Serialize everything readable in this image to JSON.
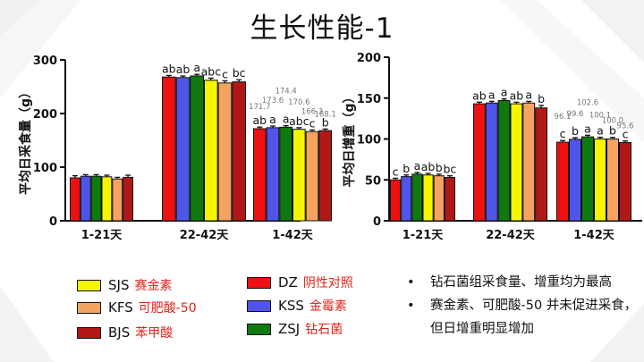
{
  "title": "生长性能-1",
  "legend": [
    {
      "code": "SJS",
      "name": "赛金素",
      "color": "#f5f500"
    },
    {
      "code": "KFS",
      "name": "可肥酸-50",
      "color": "#f4a460"
    },
    {
      "code": "BJS",
      "name": "苯甲酸",
      "color": "#b01818"
    },
    {
      "code": "DZ",
      "name": "阴性对照",
      "color": "#ee1111"
    },
    {
      "code": "KSS",
      "name": "金霉素",
      "color": "#4f55e8"
    },
    {
      "code": "ZSJ",
      "name": "钻石菌",
      "color": "#0e7a0e"
    }
  ],
  "bullets": [
    "钻石菌组采食量、增重均为最高",
    "赛金素、可肥酸-50 并未促进采食，",
    "但日增重明显增加"
  ],
  "chart_data": [
    {
      "type": "bar",
      "ylabel": "平均日采食量（g）",
      "ylim": [
        0,
        300
      ],
      "yticks": [
        "0",
        "100",
        "200",
        "300"
      ],
      "categories": [
        "1-21天",
        "22-42天",
        "1-42天"
      ],
      "series_order": [
        "DZ",
        "KSS",
        "ZSJ",
        "SJS",
        "KFS",
        "BJS"
      ],
      "values": [
        [
          80,
          83,
          83,
          82,
          78,
          81
        ],
        [
          268,
          267,
          270,
          262,
          257,
          259
        ],
        [
          171.7,
          173.6,
          174.4,
          170.6,
          166.3,
          168.1
        ]
      ],
      "errors": [
        [
          4,
          3,
          3,
          3,
          3,
          4
        ],
        [
          3,
          3,
          3,
          4,
          4,
          4
        ],
        [
          3,
          3,
          3,
          3,
          3,
          3
        ]
      ],
      "letters": [
        [
          "",
          "",
          "",
          "",
          "",
          ""
        ],
        [
          "ab",
          "ab",
          "a",
          "abc",
          "c",
          "bc"
        ],
        [
          "ab",
          "a",
          "a",
          "abc",
          "c",
          "b"
        ]
      ],
      "value_labels": [
        [
          "",
          "",
          "",
          "",
          "",
          ""
        ],
        [
          "",
          "",
          "",
          "",
          "",
          ""
        ],
        [
          "171.7",
          "173.6",
          "174.4",
          "170.6",
          "166.3",
          "168.1"
        ]
      ]
    },
    {
      "type": "bar",
      "ylabel": "平均日增重（g）",
      "ylim": [
        0,
        200
      ],
      "yticks": [
        "0",
        "50",
        "100",
        "150",
        "200"
      ],
      "categories": [
        "1-21天",
        "22-42天",
        "1-42天"
      ],
      "series_order": [
        "DZ",
        "KSS",
        "ZSJ",
        "SJS",
        "KFS",
        "BJS"
      ],
      "values": [
        [
          50,
          54,
          57,
          56,
          55,
          53
        ],
        [
          143,
          144,
          147,
          143,
          144,
          138
        ],
        [
          96.1,
          99.6,
          102.6,
          100.1,
          100.0,
          95.6
        ]
      ],
      "errors": [
        [
          2,
          2,
          2,
          2,
          2,
          2
        ],
        [
          2,
          2,
          2,
          2,
          2,
          3
        ],
        [
          2,
          2,
          2,
          2,
          2,
          2
        ]
      ],
      "letters": [
        [
          "c",
          "b",
          "a",
          "ab",
          "b",
          "bc"
        ],
        [
          "ab",
          "a",
          "a",
          "ab",
          "a",
          "b"
        ],
        [
          "c",
          "b",
          "a",
          "a",
          "b",
          "c"
        ]
      ],
      "value_labels": [
        [
          "",
          "",
          "",
          "",
          "",
          ""
        ],
        [
          "",
          "",
          "",
          "",
          "",
          ""
        ],
        [
          "96.1",
          "99.6",
          "102.6",
          "100.1",
          "100.0",
          "95.6"
        ]
      ]
    }
  ]
}
